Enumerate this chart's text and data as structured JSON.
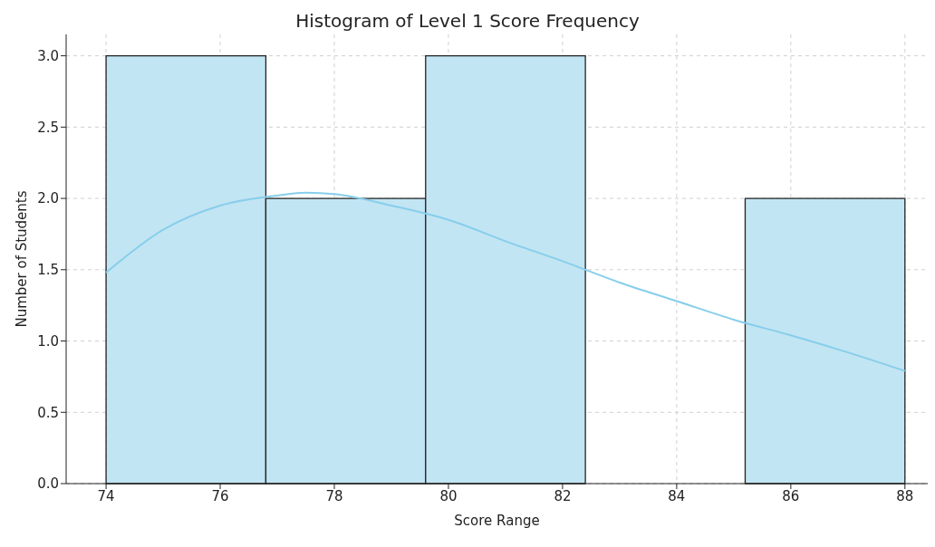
{
  "chart_data": {
    "type": "histogram",
    "title": "Histogram of Level 1 Score Frequency",
    "xlabel": "Score Range",
    "ylabel": "Number of Students",
    "bins": [
      74,
      76.8,
      79.6,
      82.4,
      85.2,
      88
    ],
    "values": [
      3,
      2,
      3,
      0,
      2
    ],
    "color": "#c2e5f3",
    "series": [
      {
        "type": "line",
        "color": "#87ceeb",
        "x": [
          74,
          75,
          76,
          77,
          77.5,
          78,
          79,
          80,
          81,
          82,
          83,
          84,
          85,
          86,
          87,
          88
        ],
        "values": [
          1.48,
          1.78,
          1.95,
          2.02,
          2.04,
          2.03,
          1.95,
          1.85,
          1.7,
          1.56,
          1.41,
          1.28,
          1.15,
          1.04,
          0.92,
          0.79
        ]
      }
    ],
    "xlim": [
      73.3,
      88.4
    ],
    "xticks": [
      74,
      76,
      78,
      80,
      82,
      84,
      86,
      88
    ],
    "ylim": [
      0,
      3.15
    ],
    "yticks": [
      {
        "value": 0,
        "label": "0.0"
      },
      {
        "value": 0.5,
        "label": "0.5"
      },
      {
        "value": 1,
        "label": "1.0"
      },
      {
        "value": 1.5,
        "label": "1.5"
      },
      {
        "value": 2,
        "label": "2.0"
      },
      {
        "value": 2.5,
        "label": "2.5"
      },
      {
        "value": 3,
        "label": "3.0"
      }
    ],
    "grid": true,
    "marker": "none",
    "line_style": "solid"
  }
}
